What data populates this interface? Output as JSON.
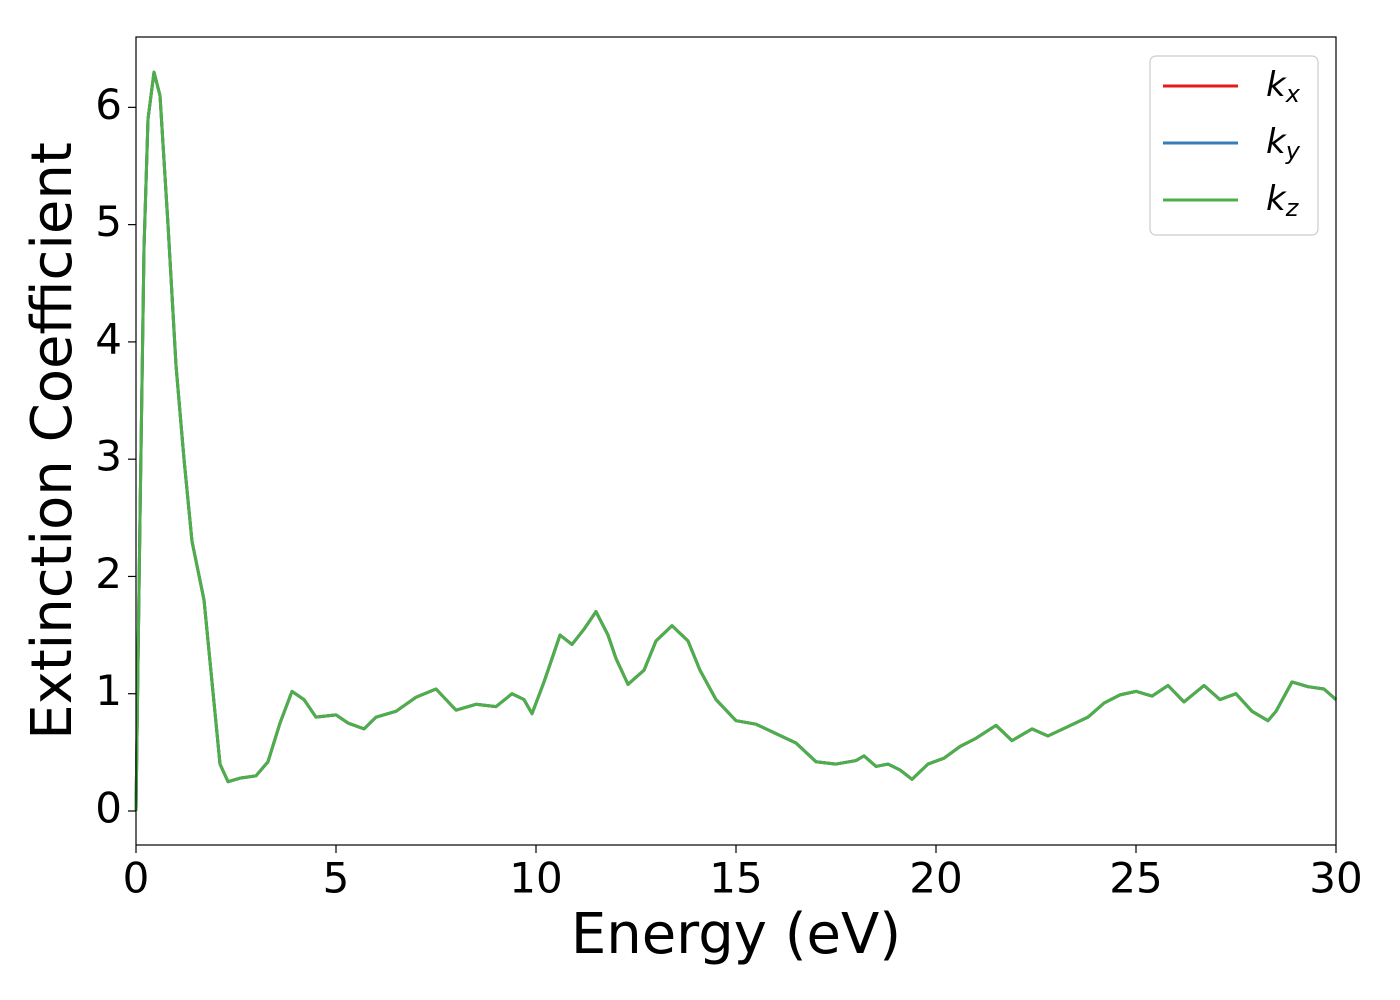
{
  "chart_data": {
    "type": "line",
    "x_label": "Energy (eV)",
    "y_label": "Extinction Coefficient",
    "xlim": [
      0,
      30
    ],
    "ylim": [
      -0.29,
      6.6
    ],
    "xticks": [
      0,
      5,
      10,
      15,
      20,
      25,
      30
    ],
    "yticks": [
      0,
      1,
      2,
      3,
      4,
      5,
      6
    ],
    "legend": "upper right",
    "x": [
      0,
      0.1,
      0.2,
      0.3,
      0.45,
      0.6,
      0.8,
      1.0,
      1.2,
      1.4,
      1.7,
      1.9,
      2.1,
      2.3,
      2.6,
      3.0,
      3.3,
      3.6,
      3.9,
      4.2,
      4.5,
      5.0,
      5.3,
      5.7,
      6.0,
      6.5,
      7.0,
      7.5,
      8.0,
      8.5,
      9.0,
      9.4,
      9.7,
      9.9,
      10.2,
      10.6,
      10.9,
      11.2,
      11.5,
      11.8,
      12.0,
      12.3,
      12.7,
      13.0,
      13.4,
      13.8,
      14.1,
      14.5,
      15.0,
      15.5,
      16.0,
      16.5,
      17.0,
      17.5,
      18.0,
      18.2,
      18.5,
      18.8,
      19.1,
      19.4,
      19.8,
      20.2,
      20.6,
      21.0,
      21.5,
      21.9,
      22.4,
      22.8,
      23.3,
      23.8,
      24.2,
      24.6,
      25.0,
      25.4,
      25.8,
      26.2,
      26.7,
      27.1,
      27.5,
      27.9,
      28.3,
      28.5,
      28.9,
      29.3,
      29.7,
      30.0
    ],
    "series": [
      {
        "name": "kx",
        "color": "#e41a1c",
        "values": [
          0,
          2.5,
          4.8,
          5.9,
          6.3,
          6.1,
          5.0,
          3.8,
          3.0,
          2.3,
          1.8,
          1.1,
          0.4,
          0.25,
          0.28,
          0.3,
          0.42,
          0.75,
          1.02,
          0.95,
          0.8,
          0.82,
          0.75,
          0.7,
          0.8,
          0.85,
          0.97,
          1.04,
          0.86,
          0.91,
          0.89,
          1.0,
          0.95,
          0.83,
          1.1,
          1.5,
          1.42,
          1.55,
          1.7,
          1.5,
          1.3,
          1.08,
          1.2,
          1.45,
          1.58,
          1.45,
          1.2,
          0.95,
          0.77,
          0.74,
          0.66,
          0.58,
          0.42,
          0.4,
          0.43,
          0.47,
          0.38,
          0.4,
          0.35,
          0.27,
          0.4,
          0.45,
          0.55,
          0.62,
          0.73,
          0.6,
          0.7,
          0.64,
          0.72,
          0.8,
          0.92,
          0.99,
          1.02,
          0.98,
          1.07,
          0.93,
          1.07,
          0.95,
          1.0,
          0.85,
          0.77,
          0.85,
          1.1,
          1.06,
          1.04,
          0.95
        ]
      },
      {
        "name": "ky",
        "color": "#377eb8",
        "values": [
          0,
          2.5,
          4.8,
          5.9,
          6.3,
          6.1,
          5.0,
          3.8,
          3.0,
          2.3,
          1.8,
          1.1,
          0.4,
          0.25,
          0.28,
          0.3,
          0.42,
          0.75,
          1.02,
          0.95,
          0.8,
          0.82,
          0.75,
          0.7,
          0.8,
          0.85,
          0.97,
          1.04,
          0.86,
          0.91,
          0.89,
          1.0,
          0.95,
          0.83,
          1.1,
          1.5,
          1.42,
          1.55,
          1.7,
          1.5,
          1.3,
          1.08,
          1.2,
          1.45,
          1.58,
          1.45,
          1.2,
          0.95,
          0.77,
          0.74,
          0.66,
          0.58,
          0.42,
          0.4,
          0.43,
          0.47,
          0.38,
          0.4,
          0.35,
          0.27,
          0.4,
          0.45,
          0.55,
          0.62,
          0.73,
          0.6,
          0.7,
          0.64,
          0.72,
          0.8,
          0.92,
          0.99,
          1.02,
          0.98,
          1.07,
          0.93,
          1.07,
          0.95,
          1.0,
          0.85,
          0.77,
          0.85,
          1.1,
          1.06,
          1.04,
          0.95
        ]
      },
      {
        "name": "kz",
        "color": "#4daf4a",
        "values": [
          0,
          2.5,
          4.8,
          5.9,
          6.3,
          6.1,
          5.0,
          3.8,
          3.0,
          2.3,
          1.8,
          1.1,
          0.4,
          0.25,
          0.28,
          0.3,
          0.42,
          0.75,
          1.02,
          0.95,
          0.8,
          0.82,
          0.75,
          0.7,
          0.8,
          0.85,
          0.97,
          1.04,
          0.86,
          0.91,
          0.89,
          1.0,
          0.95,
          0.83,
          1.1,
          1.5,
          1.42,
          1.55,
          1.7,
          1.5,
          1.3,
          1.08,
          1.2,
          1.45,
          1.58,
          1.45,
          1.2,
          0.95,
          0.77,
          0.74,
          0.66,
          0.58,
          0.42,
          0.4,
          0.43,
          0.47,
          0.38,
          0.4,
          0.35,
          0.27,
          0.4,
          0.45,
          0.55,
          0.62,
          0.73,
          0.6,
          0.7,
          0.64,
          0.72,
          0.8,
          0.92,
          0.99,
          1.02,
          0.98,
          1.07,
          0.93,
          1.07,
          0.95,
          1.0,
          0.85,
          0.77,
          0.85,
          1.1,
          1.06,
          1.04,
          0.95
        ]
      }
    ]
  }
}
